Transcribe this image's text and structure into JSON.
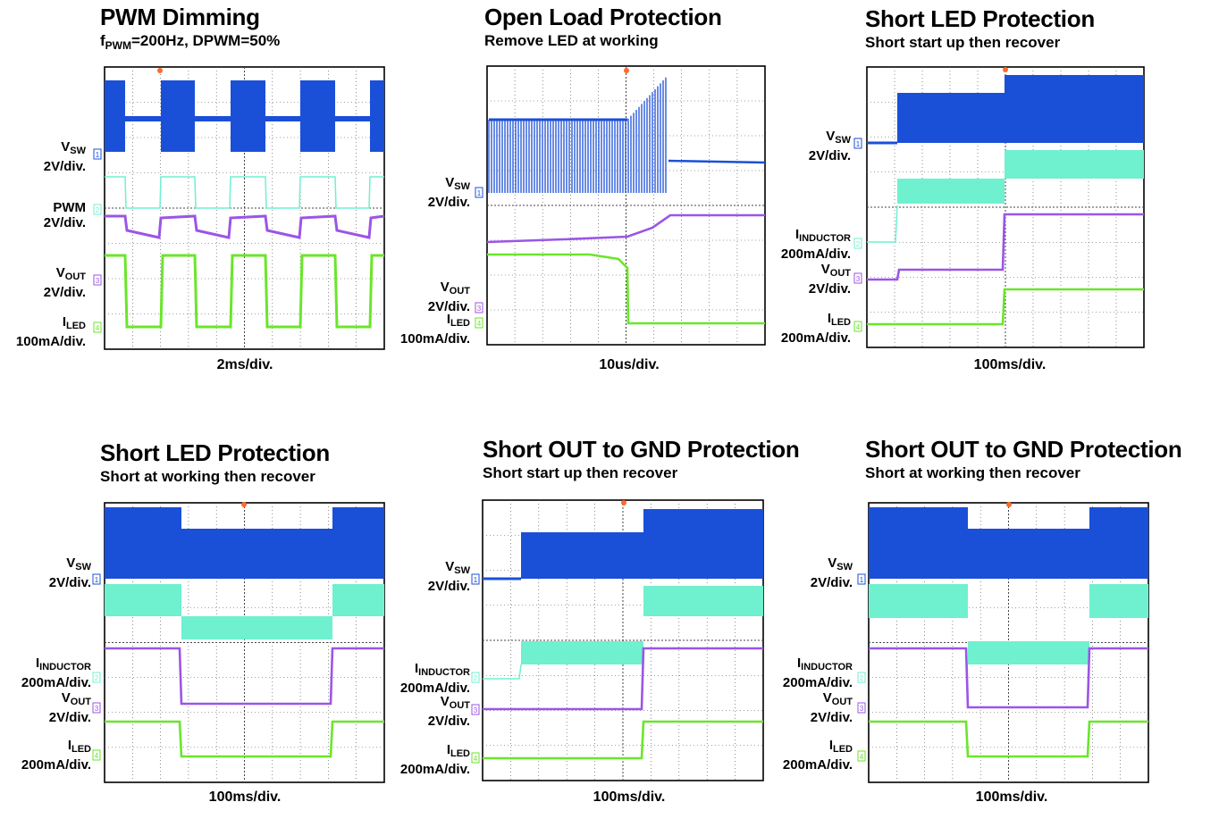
{
  "colors": {
    "vsw": "#1a4fd8",
    "inductor": "#6ff0cf",
    "vout": "#9b55e6",
    "iled": "#6ae62a",
    "trigger": "#ff6a2a",
    "grid": "#444444"
  },
  "chart_data": [
    {
      "type": "line",
      "title": "PWM Dimming",
      "subtitle": {
        "f": "f",
        "sub": "PWM",
        "rest": "=200Hz, DPWM=50%"
      },
      "time_div": "2ms/div.",
      "channels": [
        {
          "id": "1",
          "name": "V",
          "sub": "SW",
          "scale": "2V/div."
        },
        {
          "id": "2",
          "name": "PWM",
          "sub": "",
          "scale": "2V/div."
        },
        {
          "id": "3",
          "name": "V",
          "sub": "OUT",
          "scale": "2V/div."
        },
        {
          "id": "4",
          "name": "I",
          "sub": "LED",
          "scale": "100mA/div."
        }
      ]
    },
    {
      "type": "line",
      "title": "Open Load Protection",
      "subtitle": {
        "f": "Remove LED at working",
        "sub": "",
        "rest": ""
      },
      "time_div": "10us/div.",
      "channels": [
        {
          "id": "1",
          "name": "V",
          "sub": "SW",
          "scale": "2V/div."
        },
        {
          "id": "3",
          "name": "V",
          "sub": "OUT",
          "scale": "2V/div."
        },
        {
          "id": "4",
          "name": "I",
          "sub": "LED",
          "scale": "100mA/div."
        }
      ]
    },
    {
      "type": "line",
      "title": "Short LED Protection",
      "subtitle": {
        "f": "Short start up then recover",
        "sub": "",
        "rest": ""
      },
      "time_div": "100ms/div.",
      "channels": [
        {
          "id": "1",
          "name": "V",
          "sub": "SW",
          "scale": "2V/div."
        },
        {
          "id": "2",
          "name": "I",
          "sub": "INDUCTOR",
          "scale": "200mA/div."
        },
        {
          "id": "3",
          "name": "V",
          "sub": "OUT",
          "scale": "2V/div."
        },
        {
          "id": "4",
          "name": "I",
          "sub": "LED",
          "scale": "200mA/div."
        }
      ]
    },
    {
      "type": "line",
      "title": "Short LED Protection",
      "subtitle": {
        "f": "Short at working then recover",
        "sub": "",
        "rest": ""
      },
      "time_div": "100ms/div.",
      "channels": [
        {
          "id": "1",
          "name": "V",
          "sub": "SW",
          "scale": "2V/div."
        },
        {
          "id": "2",
          "name": "I",
          "sub": "INDUCTOR",
          "scale": "200mA/div."
        },
        {
          "id": "3",
          "name": "V",
          "sub": "OUT",
          "scale": "2V/div."
        },
        {
          "id": "4",
          "name": "I",
          "sub": "LED",
          "scale": "200mA/div."
        }
      ]
    },
    {
      "type": "line",
      "title": "Short OUT to GND Protection",
      "subtitle": {
        "f": "Short start up then recover",
        "sub": "",
        "rest": ""
      },
      "time_div": "100ms/div.",
      "channels": [
        {
          "id": "1",
          "name": "V",
          "sub": "SW",
          "scale": "2V/div."
        },
        {
          "id": "2",
          "name": "I",
          "sub": "INDUCTOR",
          "scale": "200mA/div."
        },
        {
          "id": "3",
          "name": "V",
          "sub": "OUT",
          "scale": "2V/div."
        },
        {
          "id": "4",
          "name": "I",
          "sub": "LED",
          "scale": "200mA/div."
        }
      ]
    },
    {
      "type": "line",
      "title": "Short OUT to GND Protection",
      "subtitle": {
        "f": "Short at working then recover",
        "sub": "",
        "rest": ""
      },
      "time_div": "100ms/div.",
      "channels": [
        {
          "id": "1",
          "name": "V",
          "sub": "SW",
          "scale": "2V/div."
        },
        {
          "id": "2",
          "name": "I",
          "sub": "INDUCTOR",
          "scale": "200mA/div."
        },
        {
          "id": "3",
          "name": "V",
          "sub": "OUT",
          "scale": "2V/div."
        },
        {
          "id": "4",
          "name": "I",
          "sub": "LED",
          "scale": "200mA/div."
        }
      ]
    }
  ]
}
